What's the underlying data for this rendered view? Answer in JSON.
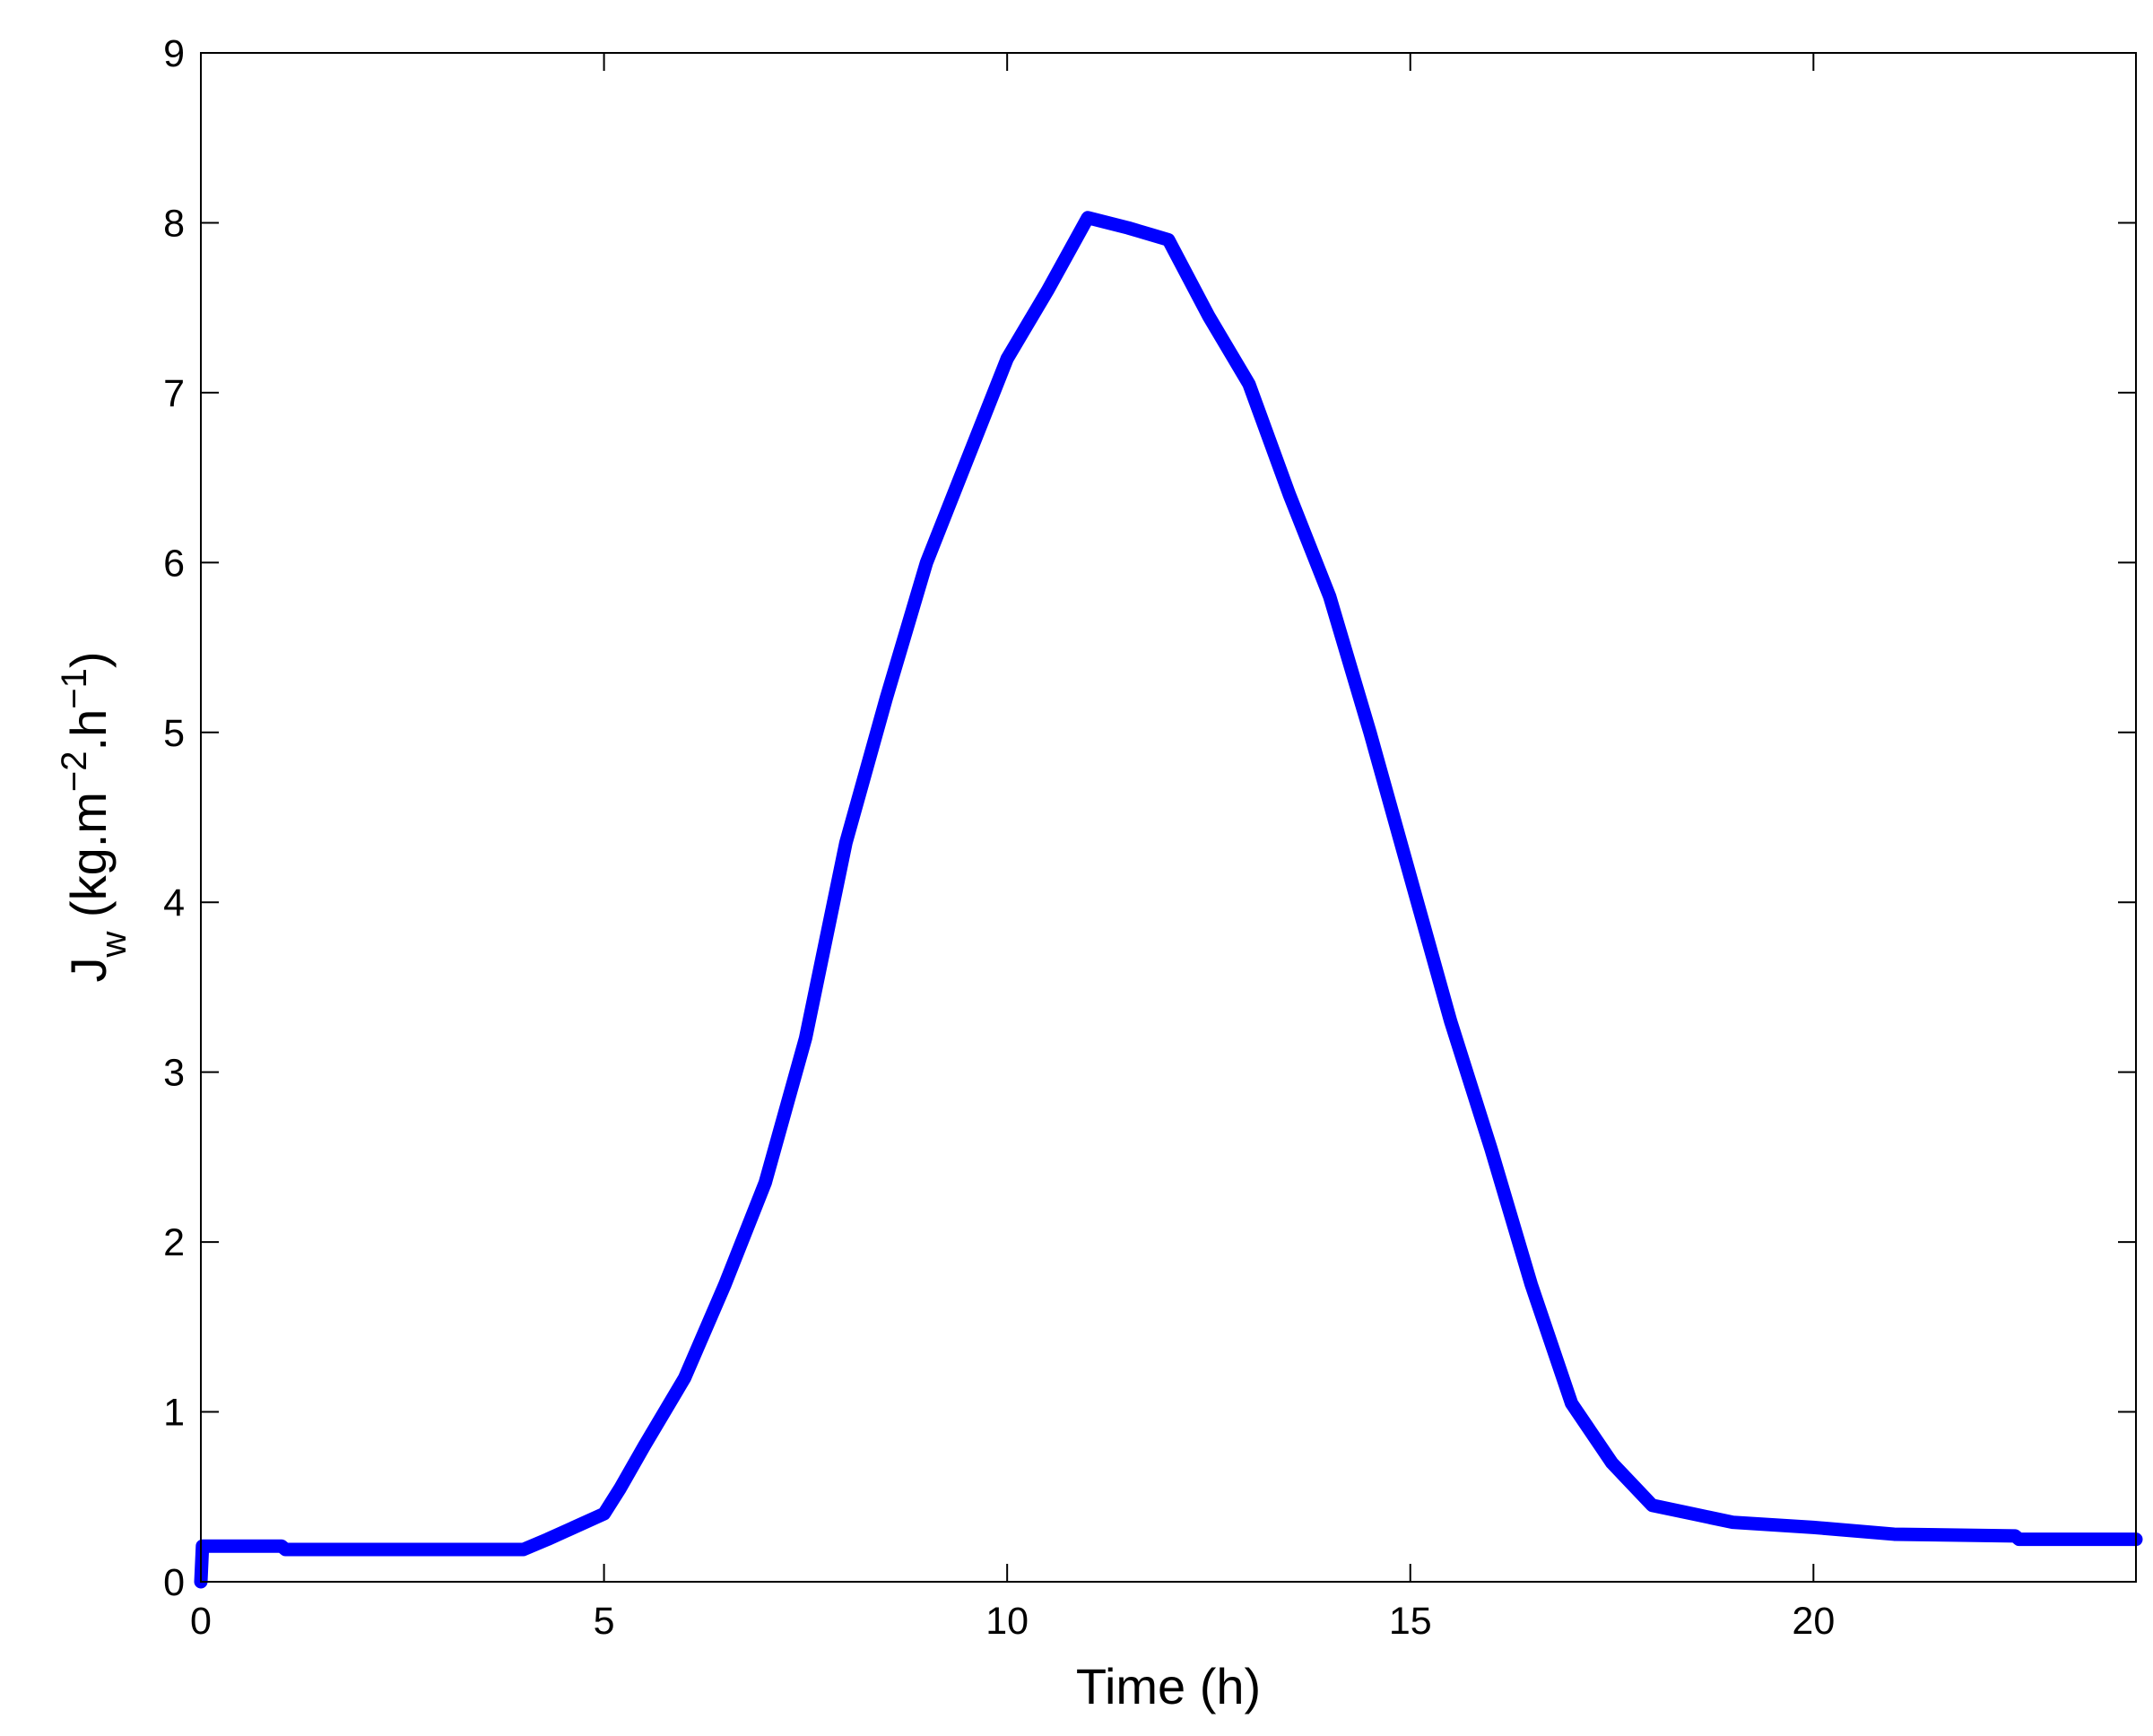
{
  "chart_data": {
    "type": "line",
    "xlabel": "Time (h)",
    "ylabel": [
      {
        "text": "J"
      },
      {
        "sub": "w"
      },
      {
        "text": " (kg.m"
      },
      {
        "sup": "−2"
      },
      {
        "text": ".h"
      },
      {
        "sup": "−1"
      },
      {
        "text": ")"
      }
    ],
    "x": [
      0,
      0.02,
      1,
      1.05,
      4,
      4.3,
      5,
      5.2,
      5.5,
      6,
      6.5,
      7,
      7.5,
      8,
      8.5,
      9,
      9.5,
      10,
      10.5,
      11,
      11.5,
      12,
      12.5,
      13,
      13.5,
      14,
      14.5,
      15,
      15.5,
      16,
      16.5,
      17,
      17.5,
      18,
      18.5,
      19,
      20,
      21,
      22.5,
      22.55,
      24
    ],
    "series": [
      {
        "name": "Jw",
        "color": "#0000ff",
        "values": [
          0,
          0.21,
          0.21,
          0.19,
          0.19,
          0.25,
          0.4,
          0.55,
          0.8,
          1.2,
          1.75,
          2.35,
          3.2,
          4.35,
          5.2,
          6.0,
          6.6,
          7.2,
          7.6,
          8.03,
          7.97,
          7.9,
          7.45,
          7.05,
          6.4,
          5.8,
          5.0,
          4.15,
          3.3,
          2.55,
          1.75,
          1.05,
          0.7,
          0.45,
          0.4,
          0.35,
          0.32,
          0.28,
          0.27,
          0.25,
          0.25
        ]
      }
    ],
    "xlim": [
      0,
      24
    ],
    "xticks": [
      0,
      5,
      10,
      15,
      20
    ],
    "ylim": [
      0,
      9
    ],
    "yticks": [
      0,
      1,
      2,
      3,
      4,
      5,
      6,
      7,
      8,
      9
    ],
    "grid": false
  }
}
